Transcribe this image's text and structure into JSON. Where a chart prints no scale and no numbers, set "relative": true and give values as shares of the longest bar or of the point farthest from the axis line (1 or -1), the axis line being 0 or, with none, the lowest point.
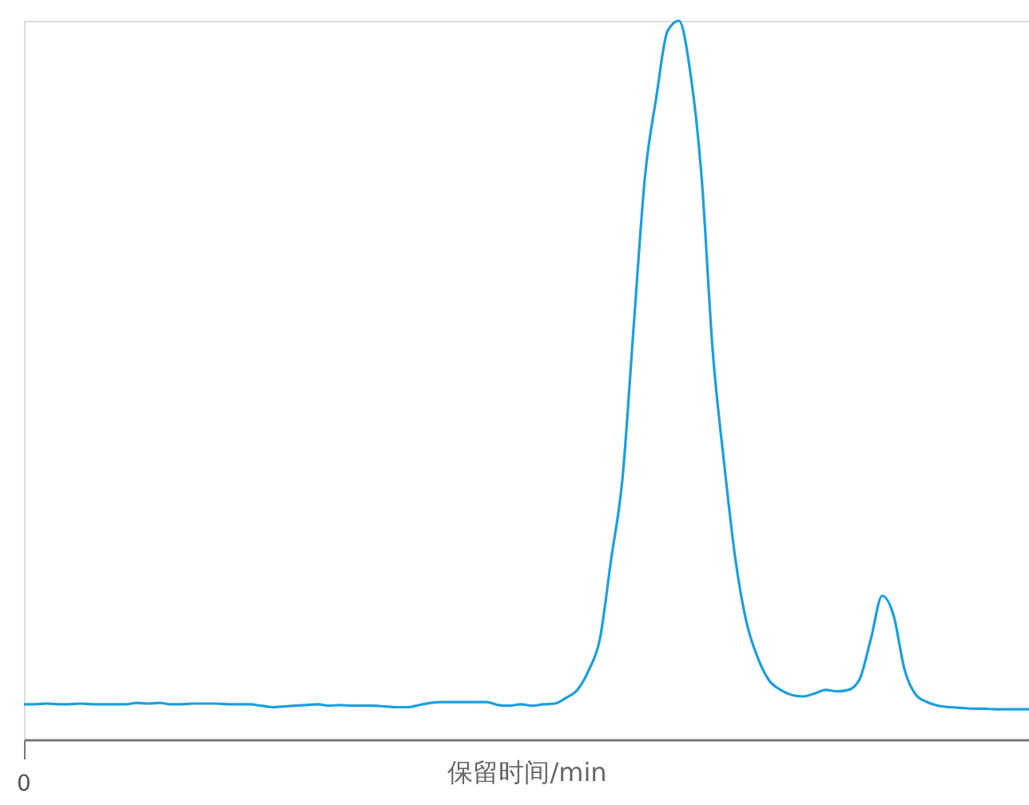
{
  "chart_data": {
    "type": "line",
    "relative": true,
    "xlabel": "保留时间/min",
    "color": "#1a9fe0",
    "marker": "none",
    "line_style": "solid",
    "annotations": [
      "0"
    ],
    "categories": [
      null,
      null,
      null,
      null,
      null,
      null,
      null,
      null,
      null,
      null,
      null,
      null,
      null,
      null,
      null,
      null,
      null,
      null,
      null,
      null,
      null,
      null,
      null,
      null,
      null,
      null,
      null,
      null,
      null,
      null,
      null,
      null,
      null,
      null,
      null,
      null,
      null,
      null,
      null,
      null,
      null,
      null,
      null,
      null,
      null,
      null,
      null,
      null,
      null,
      null,
      null,
      null,
      null,
      null,
      null,
      null,
      null,
      null,
      null,
      null,
      null,
      null,
      null,
      null,
      null,
      null,
      null,
      null,
      null,
      null,
      null,
      null,
      null,
      null,
      null,
      null,
      null,
      null,
      null,
      null,
      null,
      null,
      null,
      null,
      null,
      null,
      null,
      null,
      null,
      null
    ],
    "values": [
      0.049,
      0.049,
      0.05,
      0.049,
      0.049,
      0.05,
      0.049,
      0.049,
      0.049,
      0.049,
      0.051,
      0.05,
      0.051,
      0.049,
      0.049,
      0.05,
      0.05,
      0.05,
      0.049,
      0.049,
      0.049,
      0.047,
      0.045,
      0.046,
      0.047,
      0.048,
      0.049,
      0.047,
      0.048,
      0.047,
      0.047,
      0.047,
      0.046,
      0.045,
      0.045,
      0.048,
      0.051,
      0.052,
      0.052,
      0.052,
      0.052,
      0.052,
      0.048,
      0.047,
      0.049,
      0.047,
      0.049,
      0.05,
      0.058,
      0.069,
      0.096,
      0.14,
      0.251,
      0.363,
      0.576,
      0.784,
      0.894,
      0.986,
      1.0,
      0.929,
      0.784,
      0.539,
      0.385,
      0.251,
      0.162,
      0.113,
      0.082,
      0.069,
      0.062,
      0.06,
      0.064,
      0.069,
      0.067,
      0.069,
      0.084,
      0.14,
      0.2,
      0.173,
      0.096,
      0.062,
      0.052,
      0.047,
      0.045,
      0.044,
      0.043,
      0.043,
      0.042,
      0.042,
      0.042,
      0.042
    ]
  }
}
